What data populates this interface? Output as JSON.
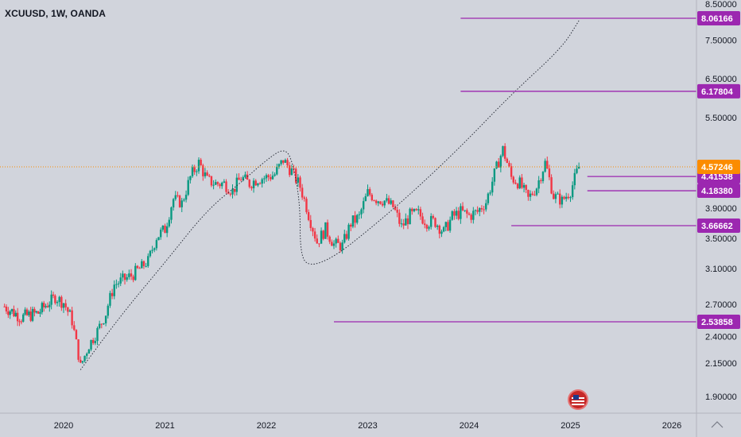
{
  "header": {
    "symbol_title": "XCUUSD, 1W, OANDA"
  },
  "icons": {
    "event_flag": "us-flag-icon"
  },
  "colors": {
    "background": "#d1d4dc",
    "up_candle": "#089981",
    "down_candle": "#f23645",
    "current_price": "#fb8c00",
    "level_line": "#9c27b0",
    "level_label_bg": "#9c27b0",
    "curve": "#2a2e39",
    "axis_text": "#131722"
  },
  "chart_data": {
    "type": "candlestick",
    "symbol": "XCUUSD",
    "interval": "1W",
    "source": "OANDA",
    "x_axis": {
      "tick_labels": [
        "2020",
        "2021",
        "2022",
        "2023",
        "2024",
        "2025",
        "2026"
      ],
      "range": [
        "2019-06",
        "2026-04"
      ]
    },
    "y_axis": {
      "scale": "log",
      "range": [
        1.78,
        8.8
      ],
      "tick_labels": [
        "1.90000",
        "2.15000",
        "2.40000",
        "2.70000",
        "3.10000",
        "3.50000",
        "3.90000",
        "5.50000",
        "6.50000",
        "7.50000",
        "8.50000"
      ]
    },
    "current_price": {
      "value": 4.57246,
      "label": "4.57246"
    },
    "levels": [
      {
        "value": 8.06166,
        "label": "8.06166",
        "from": "2023-12"
      },
      {
        "value": 6.17804,
        "label": "6.17804",
        "from": "2023-12"
      },
      {
        "value": 4.41538,
        "label": "4.41538",
        "from": "2025-03"
      },
      {
        "value": 4.1838,
        "label": "4.18380",
        "from": "2025-03"
      },
      {
        "value": 3.66662,
        "label": "3.66662",
        "from": "2024-06"
      },
      {
        "value": 2.53858,
        "label": "2.53858",
        "from": "2022-09"
      }
    ],
    "price_path": [
      [
        "2019-06",
        2.68
      ],
      [
        "2019-08",
        2.58
      ],
      [
        "2019-10",
        2.62
      ],
      [
        "2019-12",
        2.78
      ],
      [
        "2020-01",
        2.72
      ],
      [
        "2020-02",
        2.55
      ],
      [
        "2020-03",
        2.12
      ],
      [
        "2020-04",
        2.32
      ],
      [
        "2020-05",
        2.45
      ],
      [
        "2020-06",
        2.62
      ],
      [
        "2020-07",
        2.92
      ],
      [
        "2020-08",
        2.97
      ],
      [
        "2020-09",
        3.02
      ],
      [
        "2020-10",
        3.1
      ],
      [
        "2020-11",
        3.2
      ],
      [
        "2020-12",
        3.52
      ],
      [
        "2021-01",
        3.62
      ],
      [
        "2021-02",
        4.05
      ],
      [
        "2021-03",
        3.98
      ],
      [
        "2021-04",
        4.4
      ],
      [
        "2021-05",
        4.65
      ],
      [
        "2021-06",
        4.35
      ],
      [
        "2021-07",
        4.3
      ],
      [
        "2021-08",
        4.3
      ],
      [
        "2021-09",
        4.18
      ],
      [
        "2021-10",
        4.4
      ],
      [
        "2021-11",
        4.3
      ],
      [
        "2021-12",
        4.38
      ],
      [
        "2022-01",
        4.4
      ],
      [
        "2022-02",
        4.45
      ],
      [
        "2022-03",
        4.7
      ],
      [
        "2022-04",
        4.5
      ],
      [
        "2022-05",
        4.25
      ],
      [
        "2022-06",
        3.82
      ],
      [
        "2022-07",
        3.45
      ],
      [
        "2022-08",
        3.62
      ],
      [
        "2022-09",
        3.42
      ],
      [
        "2022-10",
        3.4
      ],
      [
        "2022-11",
        3.7
      ],
      [
        "2022-12",
        3.78
      ],
      [
        "2023-01",
        4.15
      ],
      [
        "2023-02",
        4.05
      ],
      [
        "2023-03",
        4.02
      ],
      [
        "2023-04",
        3.92
      ],
      [
        "2023-05",
        3.65
      ],
      [
        "2023-06",
        3.8
      ],
      [
        "2023-07",
        3.82
      ],
      [
        "2023-08",
        3.72
      ],
      [
        "2023-09",
        3.72
      ],
      [
        "2023-10",
        3.58
      ],
      [
        "2023-11",
        3.78
      ],
      [
        "2023-12",
        3.85
      ],
      [
        "2024-01",
        3.8
      ],
      [
        "2024-02",
        3.85
      ],
      [
        "2024-03",
        4.0
      ],
      [
        "2024-04",
        4.45
      ],
      [
        "2024-05",
        4.9
      ],
      [
        "2024-06",
        4.4
      ],
      [
        "2024-07",
        4.3
      ],
      [
        "2024-08",
        4.05
      ],
      [
        "2024-09",
        4.25
      ],
      [
        "2024-10",
        4.65
      ],
      [
        "2024-11",
        4.1
      ],
      [
        "2024-12",
        4.02
      ],
      [
        "2025-01",
        4.18
      ],
      [
        "2025-02",
        4.57246
      ]
    ],
    "curve_path": [
      [
        "2020-03",
        2.1
      ],
      [
        "2020-08",
        2.62
      ],
      [
        "2021-01",
        3.18
      ],
      [
        "2021-06",
        3.88
      ],
      [
        "2021-10",
        4.32
      ],
      [
        "2022-01",
        4.7
      ],
      [
        "2022-03",
        4.92
      ],
      [
        "2022-04",
        4.75
      ],
      [
        "2022-05",
        4.0
      ],
      [
        "2022-05",
        3.3
      ],
      [
        "2022-06",
        3.12
      ],
      [
        "2022-09",
        3.25
      ],
      [
        "2023-01",
        3.6
      ],
      [
        "2023-06",
        4.12
      ],
      [
        "2023-12",
        4.95
      ],
      [
        "2024-06",
        6.1
      ],
      [
        "2024-12",
        7.3
      ],
      [
        "2025-02",
        8.0
      ]
    ]
  }
}
